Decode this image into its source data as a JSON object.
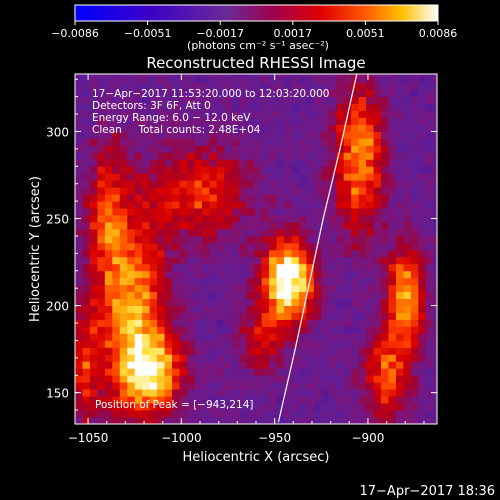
{
  "chart_data": {
    "type": "heatmap",
    "title": "Reconstructed RHESSI Image",
    "xlabel": "Heliocentric X (arcsec)",
    "ylabel": "Heliocentric Y (arcsec)",
    "xlim": [
      -1057,
      -863
    ],
    "ylim": [
      132,
      333
    ],
    "x_ticks": [
      -1050,
      -1000,
      -950,
      -900
    ],
    "y_ticks": [
      150,
      200,
      250,
      300
    ],
    "x_tick_labels": [
      "−1050",
      "−1000",
      "−950",
      "−900"
    ],
    "y_tick_labels": [
      "150",
      "200",
      "250",
      "300"
    ],
    "colorbar": {
      "range": [
        -0.0086,
        0.0086
      ],
      "tick_labels": [
        "−0.0086",
        "−0.0051",
        "−0.0017",
        "0.0017",
        "0.0051",
        "0.0086"
      ],
      "unit_label": "(photons cm⁻² s⁻¹ asec⁻²)"
    },
    "info_lines": [
      "17−Apr−2017 11:53:20.000 to 12:03:20.000",
      "Detectors: 3F 6F, Att 0",
      "Energy Range: 6.0 − 12.0 keV",
      "Clean     Total counts: 2.48E+04"
    ],
    "peak_label": "Position of Peak = [−943,214]",
    "peak": [
      -943,
      214
    ],
    "limb_line": [
      [
        -948,
        133
      ],
      [
        -939,
        175
      ],
      [
        -931,
        215
      ],
      [
        -924,
        250
      ],
      [
        -915,
        290
      ],
      [
        -906,
        333
      ]
    ],
    "sources": [
      {
        "x": -943,
        "y": 214,
        "amp": 1.0,
        "sx": 9,
        "sy": 16
      },
      {
        "x": -1026,
        "y": 196,
        "amp": 0.62,
        "sx": 12,
        "sy": 40
      },
      {
        "x": -1015,
        "y": 163,
        "amp": 0.6,
        "sx": 11,
        "sy": 14
      },
      {
        "x": -905,
        "y": 285,
        "amp": 0.58,
        "sx": 9,
        "sy": 28
      },
      {
        "x": -880,
        "y": 205,
        "amp": 0.62,
        "sx": 7,
        "sy": 20
      },
      {
        "x": -890,
        "y": 160,
        "amp": 0.45,
        "sx": 8,
        "sy": 18
      },
      {
        "x": -990,
        "y": 265,
        "amp": 0.38,
        "sx": 18,
        "sy": 18
      },
      {
        "x": -1040,
        "y": 250,
        "amp": 0.38,
        "sx": 7,
        "sy": 28
      },
      {
        "x": -1052,
        "y": 165,
        "amp": 0.35,
        "sx": 6,
        "sy": 24
      },
      {
        "x": -958,
        "y": 180,
        "amp": 0.3,
        "sx": 8,
        "sy": 12
      }
    ],
    "background_level": 0.1
  },
  "footer": {
    "timestamp": "17−Apr−2017 18:36"
  }
}
